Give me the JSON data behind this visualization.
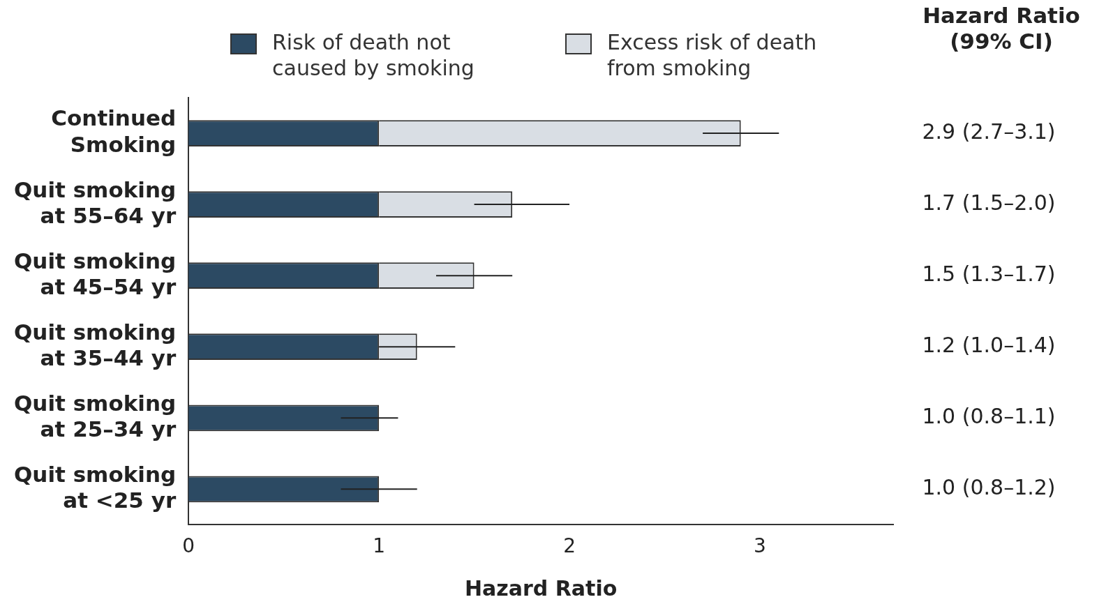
{
  "chart_data": {
    "type": "bar",
    "orientation": "horizontal",
    "stacked": true,
    "categories": [
      "Continued Smoking",
      "Quit smoking at 55–64 yr",
      "Quit smoking at 45–54 yr",
      "Quit smoking at 35–44 yr",
      "Quit smoking at 25–34 yr",
      "Quit smoking at <25 yr"
    ],
    "series": [
      {
        "name": "Risk of death not caused by smoking",
        "color": "#2c4a63",
        "values": [
          1,
          1,
          1,
          1,
          1,
          1
        ]
      },
      {
        "name": "Excess risk of death from smoking",
        "color": "#d9dee4",
        "values": [
          1.9,
          0.7,
          0.5,
          0.2,
          0,
          0
        ],
        "errors": [
          [
            2.7,
            3.1
          ],
          [
            1.5,
            2.0
          ],
          [
            1.3,
            1.7
          ],
          [
            1.0,
            1.4
          ],
          [
            0.8,
            1.1
          ],
          [
            0.8,
            1.2
          ]
        ]
      }
    ],
    "xlabel": "Hazard Ratio",
    "xlim": [
      0,
      3.7
    ],
    "xticks": [
      0,
      1,
      2,
      3
    ],
    "annotations": [
      "Hazard Ratio (99% CI)",
      "2.9 (2.7–3.1)",
      "1.7 (1.5–2.0)",
      "1.5 (1.3–1.7)",
      "1.2 (1.0–1.4)",
      "1.0 (0.8–1.1)",
      "1.0 (0.8–1.2)"
    ],
    "legend": "top",
    "grid": false
  }
}
